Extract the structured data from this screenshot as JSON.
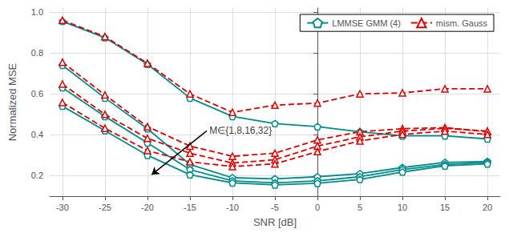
{
  "chart_data": {
    "type": "line",
    "x": [
      -30,
      -25,
      -20,
      -15,
      -10,
      -5,
      0,
      5,
      10,
      15,
      20
    ],
    "series": [
      {
        "name": "LMMSE GMM (4)",
        "color": "#008B8B",
        "marker": "pentagon",
        "line_style": "solid",
        "values": [
          0.955,
          0.875,
          0.745,
          0.58,
          0.49,
          0.455,
          0.44,
          0.415,
          0.395,
          0.395,
          0.38
        ]
      },
      {
        "name": "LMMSE GMM (4)",
        "color": "#008B8B",
        "marker": "pentagon",
        "line_style": "solid",
        "values": [
          0.74,
          0.58,
          0.43,
          0.255,
          0.19,
          0.185,
          0.195,
          0.21,
          0.24,
          0.265,
          0.27
        ]
      },
      {
        "name": "LMMSE GMM (4)",
        "color": "#008B8B",
        "marker": "pentagon",
        "line_style": "solid",
        "values": [
          0.63,
          0.49,
          0.36,
          0.23,
          0.175,
          0.165,
          0.175,
          0.195,
          0.23,
          0.255,
          0.265
        ]
      },
      {
        "name": "LMMSE GMM (4)",
        "color": "#008B8B",
        "marker": "pentagon",
        "line_style": "solid",
        "values": [
          0.54,
          0.42,
          0.3,
          0.205,
          0.165,
          0.155,
          0.163,
          0.182,
          0.218,
          0.248,
          0.258
        ]
      },
      {
        "name": "mism. Gauss",
        "color": "#DD0000",
        "marker": "triangle",
        "line_style": "dashed",
        "values": [
          0.96,
          0.88,
          0.75,
          0.6,
          0.51,
          0.545,
          0.555,
          0.6,
          0.605,
          0.625,
          0.625
        ]
      },
      {
        "name": "mism. Gauss",
        "color": "#DD0000",
        "marker": "triangle",
        "line_style": "dashed",
        "values": [
          0.755,
          0.595,
          0.44,
          0.345,
          0.295,
          0.31,
          0.375,
          0.415,
          0.43,
          0.435,
          0.415
        ]
      },
      {
        "name": "mism. Gauss",
        "color": "#DD0000",
        "marker": "triangle",
        "line_style": "dashed",
        "values": [
          0.648,
          0.5,
          0.383,
          0.31,
          0.262,
          0.278,
          0.345,
          0.39,
          0.418,
          0.432,
          0.418
        ]
      },
      {
        "name": "mism. Gauss",
        "color": "#DD0000",
        "marker": "triangle",
        "line_style": "dashed",
        "values": [
          0.558,
          0.432,
          0.323,
          0.268,
          0.245,
          0.258,
          0.318,
          0.37,
          0.402,
          0.418,
          0.402
        ]
      }
    ],
    "xlabel": "SNR [dB]",
    "ylabel": "Normalized MSE",
    "xlim": [
      -31.5,
      21.5
    ],
    "xticks": [
      -30,
      -25,
      -20,
      -15,
      -10,
      -5,
      0,
      5,
      10,
      15,
      20
    ],
    "ylim": [
      0.1,
      1.02
    ],
    "yticks": [
      0.2,
      0.4,
      0.6,
      0.8,
      {
        "value": 1.0,
        "label": "1.0"
      }
    ],
    "grid": true,
    "legend": "upper right",
    "annotations": [
      {
        "text": "M∈{1,8,16,32}",
        "x": -13.0,
        "y": 0.42,
        "arrow_x": -19.5,
        "arrow_y": 0.205
      }
    ]
  }
}
